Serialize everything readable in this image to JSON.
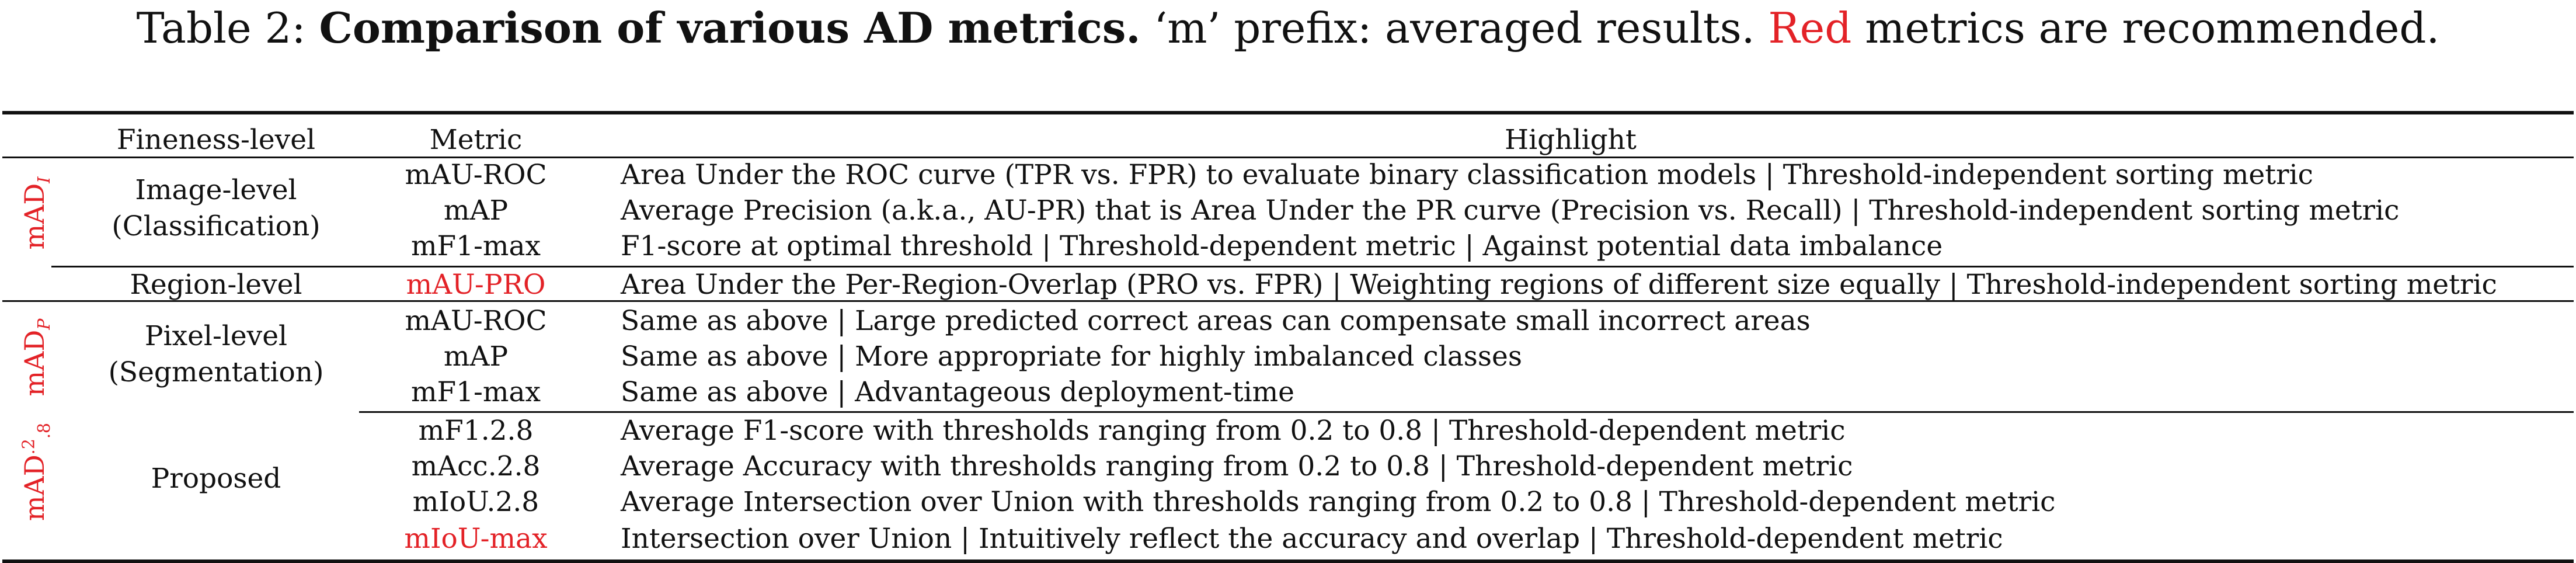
{
  "caption": {
    "prefix": "Table 2: ",
    "bold": "Comparison of various AD metrics.",
    "rest": " ‘m’ prefix: averaged results. ",
    "red_word": "Red",
    "end": " metrics are recommended."
  },
  "headers": {
    "fineness": "Fineness-level",
    "metric": "Metric",
    "highlight": "Highlight"
  },
  "groups": {
    "mad_i": "mAD",
    "mad_i_sub": "I",
    "mad_p": "mAD",
    "mad_p_sub": "P",
    "mad_28": "mAD",
    "mad_28_sup": ".2",
    "mad_28_sub": ".8"
  },
  "fineness": {
    "image_1": "Image-level",
    "image_2": "(Classification)",
    "region": "Region-level",
    "pixel_1": "Pixel-level",
    "pixel_2": "(Segmentation)",
    "proposed": "Proposed"
  },
  "rows": [
    {
      "metric": "mAU-ROC",
      "highlight": "Area Under the ROC curve (TPR vs. FPR) to evaluate binary classification models | Threshold-independent sorting metric"
    },
    {
      "metric": "mAP",
      "highlight": "Average Precision (a.k.a., AU-PR) that is Area Under the PR curve (Precision vs. Recall) | Threshold-independent sorting metric"
    },
    {
      "metric": "mF1-max",
      "highlight": "F1-score at optimal threshold | Threshold-dependent metric | Against potential data imbalance"
    },
    {
      "metric": "mAU-PRO",
      "highlight": "Area Under the Per-Region-Overlap (PRO vs. FPR) | Weighting regions of different size equally | Threshold-independent sorting metric"
    },
    {
      "metric": "mAU-ROC",
      "highlight": "Same as above | Large predicted correct areas can compensate small incorrect areas"
    },
    {
      "metric": "mAP",
      "highlight": "Same as above | More appropriate for highly imbalanced classes"
    },
    {
      "metric": "mF1-max",
      "highlight": "Same as above | Advantageous deployment-time"
    },
    {
      "metric": "mF1.2.8",
      "highlight": "Average F1-score with thresholds ranging from 0.2 to 0.8 | Threshold-dependent metric"
    },
    {
      "metric": "mAcc.2.8",
      "highlight": "Average Accuracy with thresholds ranging from 0.2 to 0.8 | Threshold-dependent metric"
    },
    {
      "metric": "mIoU.2.8",
      "highlight": "Average Intersection over Union with thresholds ranging from 0.2 to 0.8 | Threshold-dependent metric"
    },
    {
      "metric": "mIoU-max",
      "highlight": "Intersection over Union | Intuitively reflect the accuracy and overlap | Threshold-dependent metric"
    }
  ]
}
